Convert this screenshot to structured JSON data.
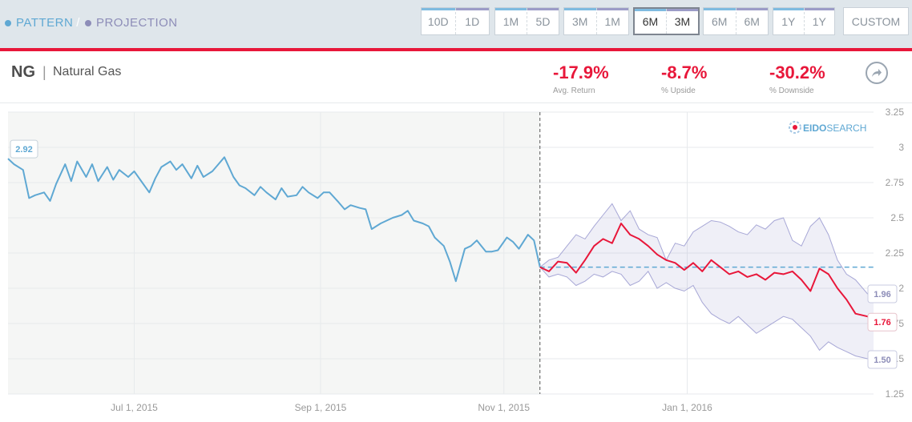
{
  "legend": {
    "pattern": "PATTERN",
    "separator": "/",
    "projection": "PROJECTION"
  },
  "ranges": [
    {
      "a": "10D",
      "b": "1D",
      "active": false
    },
    {
      "a": "1M",
      "b": "5D",
      "active": false
    },
    {
      "a": "3M",
      "b": "1M",
      "active": false
    },
    {
      "a": "6M",
      "b": "3M",
      "active": true
    },
    {
      "a": "6M",
      "b": "6M",
      "active": false
    },
    {
      "a": "1Y",
      "b": "1Y",
      "active": false
    }
  ],
  "custom_label": "CUSTOM",
  "ticker": {
    "symbol": "NG",
    "separator": "|",
    "name": "Natural Gas"
  },
  "stats": [
    {
      "value": "-17.9%",
      "label": "Avg. Return"
    },
    {
      "value": "-8.7%",
      "label": "% Upside"
    },
    {
      "value": "-30.2%",
      "label": "% Downside"
    }
  ],
  "brand": {
    "eido": "EIDO",
    "search": "SEARCH"
  },
  "colors": {
    "pattern": "#5fa8d3",
    "projection": "#e8173a",
    "band": "#9c9ccf",
    "accent": "#e8173a"
  },
  "chart_data": {
    "type": "line",
    "x_axis": {
      "ticks": [
        "Jul 1, 2015",
        "Sep 1, 2015",
        "Nov 1, 2015",
        "Jan 1, 2016"
      ]
    },
    "y_axis": {
      "min": 1.25,
      "max": 3.25,
      "ticks": [
        "3.25",
        "3",
        "2.75",
        "2.5",
        "2.25",
        "2",
        "1.75",
        "1.5",
        "1.25"
      ],
      "position": "right"
    },
    "start_label": "2.92",
    "end_labels": {
      "upper": "1.96",
      "average": "1.76",
      "lower": "1.50"
    },
    "projection_start_date": "2015-11-13",
    "current_price": 2.15,
    "pattern": {
      "x": [
        "2015-05-20",
        "2015-05-22",
        "2015-05-25",
        "2015-05-27",
        "2015-05-29",
        "2015-06-01",
        "2015-06-03",
        "2015-06-05",
        "2015-06-08",
        "2015-06-10",
        "2015-06-12",
        "2015-06-15",
        "2015-06-17",
        "2015-06-19",
        "2015-06-22",
        "2015-06-24",
        "2015-06-26",
        "2015-06-29",
        "2015-07-01",
        "2015-07-03",
        "2015-07-06",
        "2015-07-08",
        "2015-07-10",
        "2015-07-13",
        "2015-07-15",
        "2015-07-17",
        "2015-07-20",
        "2015-07-22",
        "2015-07-24",
        "2015-07-27",
        "2015-07-29",
        "2015-07-31",
        "2015-08-03",
        "2015-08-05",
        "2015-08-07",
        "2015-08-10",
        "2015-08-12",
        "2015-08-14",
        "2015-08-17",
        "2015-08-19",
        "2015-08-21",
        "2015-08-24",
        "2015-08-26",
        "2015-08-28",
        "2015-08-31",
        "2015-09-02",
        "2015-09-04",
        "2015-09-07",
        "2015-09-09",
        "2015-09-11",
        "2015-09-14",
        "2015-09-16",
        "2015-09-18",
        "2015-09-21",
        "2015-09-23",
        "2015-09-25",
        "2015-09-28",
        "2015-09-30",
        "2015-10-02",
        "2015-10-05",
        "2015-10-07",
        "2015-10-09",
        "2015-10-12",
        "2015-10-14",
        "2015-10-16",
        "2015-10-19",
        "2015-10-21",
        "2015-10-23",
        "2015-10-26",
        "2015-10-28",
        "2015-10-30",
        "2015-11-02",
        "2015-11-04",
        "2015-11-06",
        "2015-11-09",
        "2015-11-11",
        "2015-11-13"
      ],
      "y": [
        2.92,
        2.88,
        2.84,
        2.64,
        2.66,
        2.68,
        2.62,
        2.74,
        2.88,
        2.76,
        2.9,
        2.79,
        2.88,
        2.76,
        2.86,
        2.77,
        2.84,
        2.79,
        2.83,
        2.77,
        2.68,
        2.78,
        2.86,
        2.9,
        2.84,
        2.88,
        2.78,
        2.87,
        2.79,
        2.83,
        2.88,
        2.93,
        2.79,
        2.73,
        2.71,
        2.66,
        2.72,
        2.68,
        2.63,
        2.71,
        2.65,
        2.66,
        2.72,
        2.68,
        2.64,
        2.68,
        2.68,
        2.61,
        2.56,
        2.59,
        2.57,
        2.56,
        2.42,
        2.46,
        2.48,
        2.5,
        2.52,
        2.55,
        2.48,
        2.46,
        2.44,
        2.36,
        2.3,
        2.19,
        2.05,
        2.28,
        2.3,
        2.34,
        2.26,
        2.26,
        2.27,
        2.36,
        2.33,
        2.28,
        2.38,
        2.34,
        2.15
      ]
    },
    "projection": {
      "x": [
        "2015-11-13",
        "2015-11-16",
        "2015-11-19",
        "2015-11-22",
        "2015-11-25",
        "2015-11-28",
        "2015-12-01",
        "2015-12-04",
        "2015-12-07",
        "2015-12-10",
        "2015-12-13",
        "2015-12-16",
        "2015-12-19",
        "2015-12-22",
        "2015-12-25",
        "2015-12-28",
        "2015-12-31",
        "2016-01-03",
        "2016-01-06",
        "2016-01-09",
        "2016-01-12",
        "2016-01-15",
        "2016-01-18",
        "2016-01-21",
        "2016-01-24",
        "2016-01-27",
        "2016-01-30",
        "2016-02-02",
        "2016-02-05",
        "2016-02-08",
        "2016-02-11",
        "2016-02-14",
        "2016-02-17",
        "2016-02-20",
        "2016-02-23",
        "2016-02-26",
        "2016-03-01",
        "2016-03-03"
      ],
      "avg": [
        2.15,
        2.12,
        2.19,
        2.18,
        2.11,
        2.2,
        2.3,
        2.35,
        2.32,
        2.46,
        2.38,
        2.35,
        2.3,
        2.24,
        2.2,
        2.18,
        2.13,
        2.18,
        2.12,
        2.2,
        2.15,
        2.1,
        2.12,
        2.08,
        2.1,
        2.06,
        2.11,
        2.1,
        2.12,
        2.06,
        1.98,
        2.14,
        2.1,
        2.0,
        1.92,
        1.82,
        1.8,
        1.76
      ],
      "upper": [
        2.15,
        2.2,
        2.22,
        2.3,
        2.38,
        2.35,
        2.44,
        2.52,
        2.6,
        2.48,
        2.55,
        2.42,
        2.38,
        2.36,
        2.2,
        2.32,
        2.3,
        2.4,
        2.44,
        2.48,
        2.47,
        2.44,
        2.4,
        2.38,
        2.45,
        2.42,
        2.48,
        2.5,
        2.34,
        2.3,
        2.44,
        2.5,
        2.38,
        2.2,
        2.1,
        2.06,
        1.96,
        1.96
      ],
      "lower": [
        2.15,
        2.08,
        2.1,
        2.08,
        2.02,
        2.05,
        2.1,
        2.08,
        2.12,
        2.1,
        2.02,
        2.05,
        2.12,
        2.0,
        2.04,
        2.0,
        1.98,
        2.02,
        1.9,
        1.82,
        1.78,
        1.75,
        1.8,
        1.74,
        1.68,
        1.72,
        1.76,
        1.8,
        1.78,
        1.72,
        1.66,
        1.56,
        1.62,
        1.58,
        1.55,
        1.52,
        1.5,
        1.5
      ]
    }
  }
}
